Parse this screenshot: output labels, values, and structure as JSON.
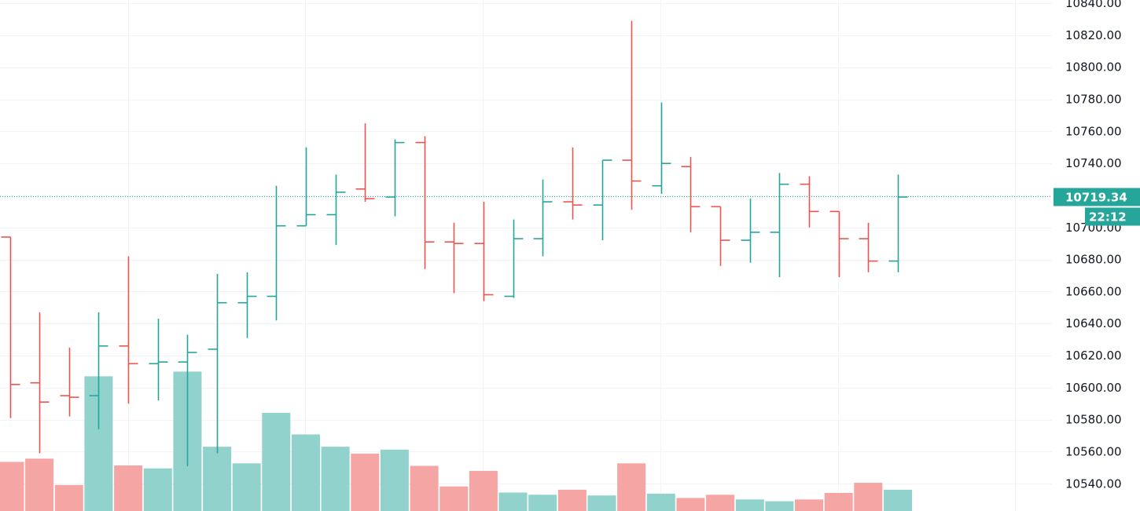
{
  "colors": {
    "up": "#26a69a",
    "down": "#ef5350",
    "up_volume": "#92d2cc",
    "down_volume": "#f5a6a4",
    "grid": "#f0f3fa",
    "axis_text": "#131722",
    "price_tag_bg": "#26a69a",
    "price_line": "#26a69a"
  },
  "price_scale": {
    "labels": [
      "10840.00",
      "10820.00",
      "10800.00",
      "10780.00",
      "10760.00",
      "10740.00",
      "10720.00",
      "10700.00",
      "10680.00",
      "10660.00",
      "10640.00",
      "10620.00",
      "10600.00",
      "10580.00",
      "10560.00",
      "10540.00"
    ]
  },
  "current_price": {
    "label": "10719.34",
    "countdown": "22:12"
  },
  "chart_data": {
    "type": "ohlc",
    "title": "",
    "xlabel": "",
    "ylabel": "",
    "ylim": [
      10523,
      10842
    ],
    "grid": true,
    "current_price": 10719.34,
    "bars": [
      {
        "o": 10694,
        "h": 10694,
        "l": 10581,
        "c": 10602
      },
      {
        "o": 10603,
        "h": 10647,
        "l": 10559,
        "c": 10591
      },
      {
        "o": 10595,
        "h": 10625,
        "l": 10582,
        "c": 10594
      },
      {
        "o": 10595,
        "h": 10647,
        "l": 10574,
        "c": 10626
      },
      {
        "o": 10626,
        "h": 10682,
        "l": 10590,
        "c": 10615
      },
      {
        "o": 10615,
        "h": 10643,
        "l": 10592,
        "c": 10616
      },
      {
        "o": 10616,
        "h": 10633,
        "l": 10551,
        "c": 10622
      },
      {
        "o": 10624,
        "h": 10671,
        "l": 10559,
        "c": 10653
      },
      {
        "o": 10653,
        "h": 10672,
        "l": 10631,
        "c": 10657
      },
      {
        "o": 10657,
        "h": 10726,
        "l": 10642,
        "c": 10701
      },
      {
        "o": 10701,
        "h": 10750,
        "l": 10701,
        "c": 10708
      },
      {
        "o": 10708,
        "h": 10733,
        "l": 10689,
        "c": 10722
      },
      {
        "o": 10724,
        "h": 10765,
        "l": 10716,
        "c": 10718
      },
      {
        "o": 10719,
        "h": 10755,
        "l": 10707,
        "c": 10753
      },
      {
        "o": 10753,
        "h": 10757,
        "l": 10674,
        "c": 10691
      },
      {
        "o": 10691,
        "h": 10703,
        "l": 10659,
        "c": 10690
      },
      {
        "o": 10690,
        "h": 10716,
        "l": 10654,
        "c": 10658
      },
      {
        "o": 10657,
        "h": 10705,
        "l": 10656,
        "c": 10693
      },
      {
        "o": 10693,
        "h": 10730,
        "l": 10682,
        "c": 10716
      },
      {
        "o": 10716,
        "h": 10750,
        "l": 10705,
        "c": 10714
      },
      {
        "o": 10714,
        "h": 10742,
        "l": 10692,
        "c": 10742
      },
      {
        "o": 10742,
        "h": 10829,
        "l": 10711,
        "c": 10729
      },
      {
        "o": 10726,
        "h": 10778,
        "l": 10721,
        "c": 10740
      },
      {
        "o": 10738,
        "h": 10744,
        "l": 10697,
        "c": 10713
      },
      {
        "o": 10713,
        "h": 10713,
        "l": 10676,
        "c": 10692
      },
      {
        "o": 10692,
        "h": 10718,
        "l": 10678,
        "c": 10697
      },
      {
        "o": 10697,
        "h": 10734,
        "l": 10669,
        "c": 10727
      },
      {
        "o": 10727,
        "h": 10732,
        "l": 10700,
        "c": 10710
      },
      {
        "o": 10710,
        "h": 10710,
        "l": 10669,
        "c": 10693
      },
      {
        "o": 10693,
        "h": 10703,
        "l": 10672,
        "c": 10679
      },
      {
        "o": 10679,
        "h": 10733,
        "l": 10672,
        "c": 10719
      }
    ],
    "volume": [
      {
        "v": 13.6,
        "dir": "down"
      },
      {
        "v": 14.5,
        "dir": "down"
      },
      {
        "v": 7.2,
        "dir": "down"
      },
      {
        "v": 37.3,
        "dir": "up"
      },
      {
        "v": 12.6,
        "dir": "down"
      },
      {
        "v": 11.8,
        "dir": "up"
      },
      {
        "v": 38.6,
        "dir": "up"
      },
      {
        "v": 17.8,
        "dir": "up"
      },
      {
        "v": 13.2,
        "dir": "up"
      },
      {
        "v": 27.2,
        "dir": "up"
      },
      {
        "v": 21.2,
        "dir": "up"
      },
      {
        "v": 17.8,
        "dir": "up"
      },
      {
        "v": 15.9,
        "dir": "down"
      },
      {
        "v": 17.0,
        "dir": "up"
      },
      {
        "v": 12.5,
        "dir": "down"
      },
      {
        "v": 6.8,
        "dir": "down"
      },
      {
        "v": 11.1,
        "dir": "down"
      },
      {
        "v": 5.1,
        "dir": "up"
      },
      {
        "v": 4.5,
        "dir": "up"
      },
      {
        "v": 5.9,
        "dir": "down"
      },
      {
        "v": 4.3,
        "dir": "up"
      },
      {
        "v": 13.2,
        "dir": "down"
      },
      {
        "v": 4.8,
        "dir": "up"
      },
      {
        "v": 3.6,
        "dir": "down"
      },
      {
        "v": 4.5,
        "dir": "down"
      },
      {
        "v": 3.2,
        "dir": "up"
      },
      {
        "v": 2.7,
        "dir": "up"
      },
      {
        "v": 3.2,
        "dir": "down"
      },
      {
        "v": 5.0,
        "dir": "down"
      },
      {
        "v": 7.8,
        "dir": "down"
      },
      {
        "v": 5.9,
        "dir": "up"
      }
    ]
  }
}
